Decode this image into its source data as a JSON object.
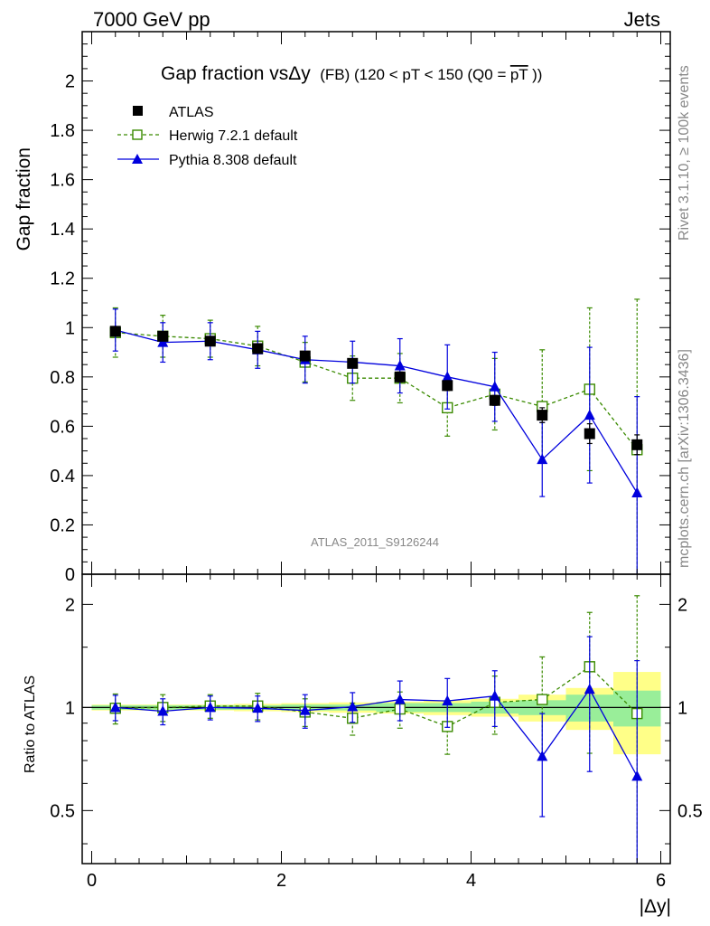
{
  "header": {
    "left": "7000 GeV pp",
    "right": "Jets"
  },
  "side_labels": {
    "rivet": "Rivet 3.1.10, ≥ 100k events",
    "mcplots": "mcplots.cern.ch [arXiv:1306.3436]"
  },
  "colors": {
    "data": "#000000",
    "herwig": "#3a8a00",
    "pythia": "#0000dd",
    "band_inner": "#99ee99",
    "band_outer": "#ffff88"
  },
  "chart_data": [
    {
      "type": "scatter",
      "panel": "main",
      "title_main": "Gap fraction vsΔy",
      "title_small": "(FB) (120 < pT < 150 (Q0 =",
      "title_over": "pT",
      "title_end": "))",
      "ylabel": "Gap fraction",
      "watermark": "ATLAS_2011_S9126244",
      "xlim": [
        -0.1,
        6.1
      ],
      "ylim": [
        0,
        2.2
      ],
      "yticks": [
        0,
        0.2,
        0.4,
        0.6,
        0.8,
        1,
        1.2,
        1.4,
        1.6,
        1.8,
        2
      ],
      "ytick_labels": [
        "0",
        "0.2",
        "0.4",
        "0.6",
        "0.8",
        "1",
        "1.2",
        "1.4",
        "1.6",
        "1.8",
        "2"
      ],
      "legend_position": "top-left",
      "x": [
        0.25,
        0.75,
        1.25,
        1.75,
        2.25,
        2.75,
        3.25,
        3.75,
        4.25,
        4.75,
        5.25,
        5.75
      ],
      "series": [
        {
          "name": "ATLAS",
          "style": "data",
          "values": [
            0.985,
            0.965,
            0.945,
            0.915,
            0.885,
            0.855,
            0.8,
            0.765,
            0.705,
            0.645,
            0.57,
            0.525
          ],
          "errors": [
            0.01,
            0.01,
            0.01,
            0.01,
            0.015,
            0.015,
            0.02,
            0.02,
            0.02,
            0.03,
            0.04,
            0.04
          ]
        },
        {
          "name": "Herwig 7.2.1 default",
          "style": "herwig",
          "values": [
            0.98,
            0.965,
            0.955,
            0.925,
            0.86,
            0.795,
            0.795,
            0.675,
            0.73,
            0.68,
            0.75,
            0.505
          ],
          "errors": [
            0.1,
            0.085,
            0.075,
            0.08,
            0.08,
            0.09,
            0.1,
            0.115,
            0.145,
            0.23,
            0.33,
            0.61
          ]
        },
        {
          "name": "Pythia 8.308 default",
          "style": "pythia",
          "values": [
            0.99,
            0.94,
            0.945,
            0.91,
            0.87,
            0.86,
            0.845,
            0.8,
            0.76,
            0.465,
            0.645,
            0.33
          ],
          "errors": [
            0.085,
            0.08,
            0.075,
            0.075,
            0.095,
            0.085,
            0.11,
            0.13,
            0.14,
            0.15,
            0.275,
            0.39
          ]
        }
      ]
    },
    {
      "type": "scatter",
      "panel": "ratio",
      "ylabel": "Ratio to ATLAS",
      "xlabel": "|Δy|",
      "xlim": [
        -0.1,
        6.1
      ],
      "ylim": [
        0.35,
        2.45
      ],
      "log_y": true,
      "xticks": [
        0,
        2,
        4,
        6
      ],
      "xtick_labels": [
        "0",
        "2",
        "4",
        "6"
      ],
      "yticks": [
        0.5,
        1,
        2
      ],
      "ytick_labels": [
        "0.5",
        "1",
        "2"
      ],
      "x": [
        0.25,
        0.75,
        1.25,
        1.75,
        2.25,
        2.75,
        3.25,
        3.75,
        4.25,
        4.75,
        5.25,
        5.75
      ],
      "band_inner": [
        0.015,
        0.015,
        0.015,
        0.015,
        0.02,
        0.02,
        0.03,
        0.03,
        0.04,
        0.05,
        0.09,
        0.12
      ],
      "band_outer": [
        0.02,
        0.02,
        0.02,
        0.025,
        0.03,
        0.035,
        0.04,
        0.05,
        0.06,
        0.09,
        0.14,
        0.27
      ],
      "series": [
        {
          "name": "Herwig 7.2.1 default",
          "style": "herwig",
          "values": [
            0.995,
            1.0,
            1.01,
            1.01,
            0.97,
            0.93,
            0.99,
            0.88,
            1.035,
            1.055,
            1.315,
            0.96
          ],
          "errors": [
            0.1,
            0.09,
            0.08,
            0.09,
            0.09,
            0.1,
            0.12,
            0.15,
            0.2,
            0.35,
            0.58,
            1.16
          ]
        },
        {
          "name": "Pythia 8.308 default",
          "style": "pythia",
          "values": [
            1.0,
            0.975,
            1.0,
            0.995,
            0.98,
            1.005,
            1.055,
            1.045,
            1.08,
            0.72,
            1.13,
            0.63
          ],
          "errors": [
            0.085,
            0.085,
            0.08,
            0.085,
            0.11,
            0.1,
            0.14,
            0.17,
            0.2,
            0.24,
            0.48,
            0.74
          ]
        }
      ]
    }
  ]
}
